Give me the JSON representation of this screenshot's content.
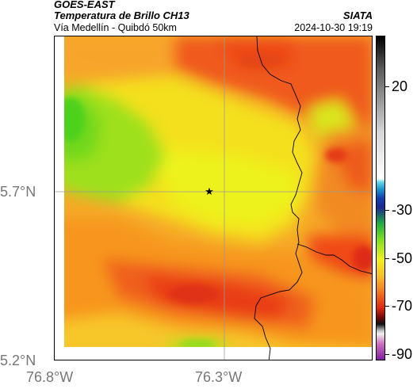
{
  "header": {
    "satellite": "GOES-EAST",
    "product": "Temperatura de Brillo CH13",
    "route": "Vía Medellín - Quibdó 50km",
    "agency": "SIATA",
    "datetime": "2024-10-30 19:19"
  },
  "axes": {
    "lat_labels": [
      "5.7°N",
      "5.2°N"
    ],
    "lon_labels": [
      "76.8°W",
      "76.3°W"
    ]
  },
  "colorbar": {
    "ticks": [
      "20",
      "-30",
      "-50",
      "-70",
      "-90"
    ],
    "tick_values": [
      20,
      -30,
      -50,
      -70,
      -90
    ],
    "range": [
      -95,
      45
    ]
  },
  "marker": {
    "symbol": "★"
  }
}
